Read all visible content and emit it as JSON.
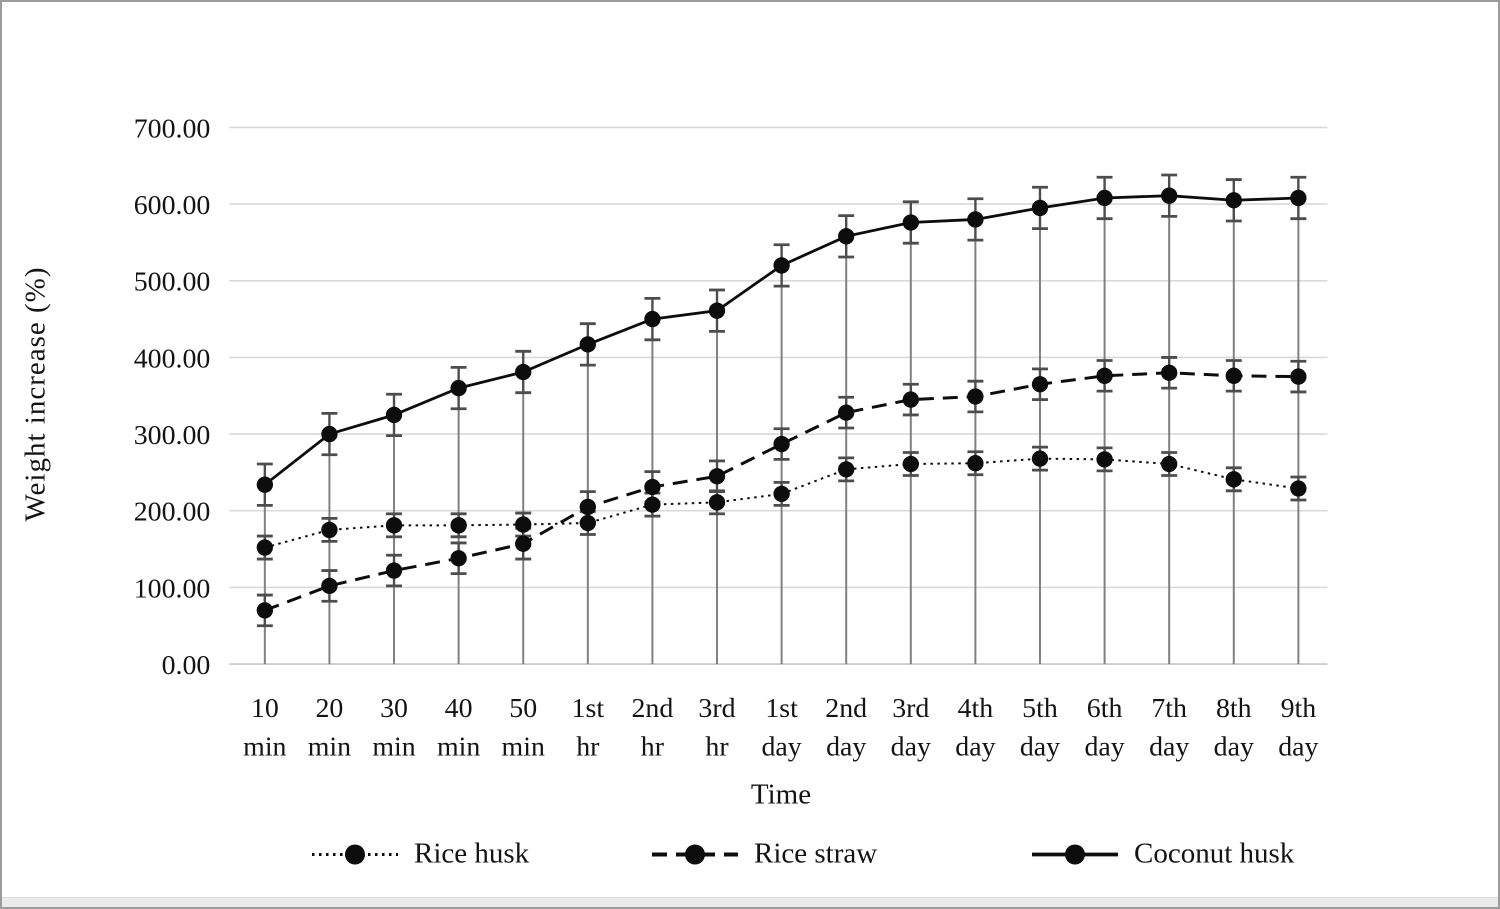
{
  "chart_data": {
    "type": "line",
    "title": "",
    "xlabel": "Time",
    "ylabel": "Weight increase (%)",
    "ylim": [
      0,
      700
    ],
    "y_tick_step": 100,
    "y_tick_labels": [
      "0.00",
      "100.00",
      "200.00",
      "300.00",
      "400.00",
      "500.00",
      "600.00",
      "700.00"
    ],
    "grid": "horizontal-only",
    "drop_lines": true,
    "legend_position": "bottom",
    "categories": [
      [
        "10",
        "min"
      ],
      [
        "20",
        "min"
      ],
      [
        "30",
        "min"
      ],
      [
        "40",
        "min"
      ],
      [
        "50",
        "min"
      ],
      [
        "1st",
        "hr"
      ],
      [
        "2nd",
        "hr"
      ],
      [
        "3rd",
        "hr"
      ],
      [
        "1st",
        "day"
      ],
      [
        "2nd",
        "day"
      ],
      [
        "3rd",
        "day"
      ],
      [
        "4th",
        "day"
      ],
      [
        "5th",
        "day"
      ],
      [
        "6th",
        "day"
      ],
      [
        "7th",
        "day"
      ],
      [
        "8th",
        "day"
      ],
      [
        "9th",
        "day"
      ]
    ],
    "series": [
      {
        "name": "Rice husk",
        "style": "dotted",
        "error": 15,
        "values": [
          152,
          175,
          181,
          181,
          182,
          184,
          208,
          211,
          222,
          254,
          261,
          262,
          268,
          267,
          261,
          241,
          229
        ]
      },
      {
        "name": "Rice straw",
        "style": "dashed",
        "error": 20,
        "values": [
          70,
          102,
          122,
          138,
          157,
          205,
          231,
          245,
          287,
          328,
          345,
          349,
          365,
          376,
          380,
          376,
          375
        ]
      },
      {
        "name": "Coconut husk",
        "style": "solid",
        "error": 27,
        "values": [
          234,
          300,
          325,
          360,
          381,
          417,
          450,
          461,
          520,
          558,
          576,
          580,
          595,
          608,
          611,
          605,
          608
        ]
      }
    ]
  },
  "colors": {
    "text": "#141414",
    "gridline": "#d9d9d9",
    "axis_line": "#c6c6c6",
    "drop_line": "#808080",
    "error_bar": "#4d4d4d",
    "series": "#0d0d0d",
    "frame_border": "#9c9c9c",
    "bottom_strip": "#ebebeb"
  }
}
